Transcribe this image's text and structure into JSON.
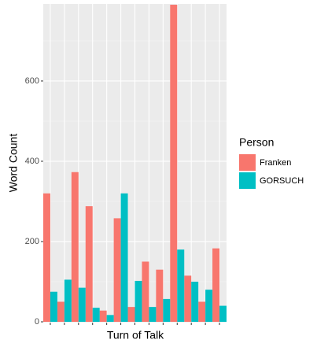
{
  "chart_data": {
    "type": "bar",
    "x_label": "Turn of Talk",
    "y_label": "Word Count",
    "legend_title": "Person",
    "categories": [
      null,
      null,
      null,
      null,
      null,
      null,
      null,
      null,
      null,
      null,
      null,
      null,
      null
    ],
    "series": [
      {
        "name": "Franken",
        "color": "#f8766d",
        "values": [
          320,
          50,
          373,
          288,
          28,
          258,
          37,
          150,
          130,
          790,
          115,
          50,
          183
        ]
      },
      {
        "name": "GORSUCH",
        "color": "#00bfc4",
        "values": [
          75,
          105,
          85,
          35,
          17,
          320,
          102,
          37,
          57,
          180,
          100,
          80,
          40
        ]
      }
    ],
    "ylim": [
      0,
      792
    ],
    "yticks": [
      0,
      200,
      400,
      600
    ],
    "grid": true,
    "legend": "right"
  }
}
